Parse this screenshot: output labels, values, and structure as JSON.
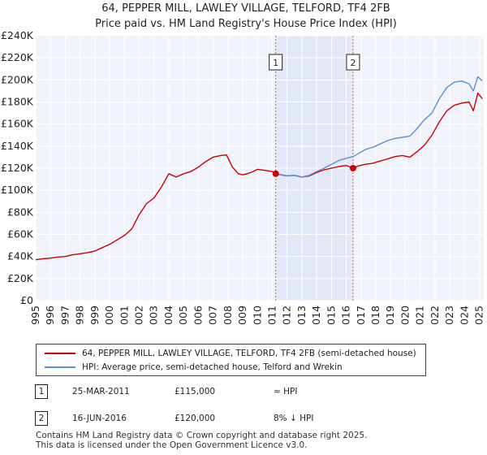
{
  "chart_data": {
    "type": "line",
    "title": "64, PEPPER MILL, LAWLEY VILLAGE, TELFORD, TF4 2FB",
    "subtitle": "Price paid vs. HM Land Registry's House Price Index (HPI)",
    "xlim": [
      1995,
      2025.3
    ],
    "ylim": [
      0,
      240000
    ],
    "x_ticks": [
      "1995",
      "1996",
      "1997",
      "1998",
      "1999",
      "2000",
      "2001",
      "2002",
      "2003",
      "2004",
      "2005",
      "2006",
      "2007",
      "2008",
      "2009",
      "2010",
      "2011",
      "2012",
      "2013",
      "2014",
      "2015",
      "2016",
      "2017",
      "2018",
      "2019",
      "2020",
      "2021",
      "2022",
      "2023",
      "2024",
      "2025"
    ],
    "y_ticks": [
      {
        "value": 0,
        "label": "£0"
      },
      {
        "value": 20000,
        "label": "£20K"
      },
      {
        "value": 40000,
        "label": "£40K"
      },
      {
        "value": 60000,
        "label": "£60K"
      },
      {
        "value": 80000,
        "label": "£80K"
      },
      {
        "value": 100000,
        "label": "£100K"
      },
      {
        "value": 120000,
        "label": "£120K"
      },
      {
        "value": 140000,
        "label": "£140K"
      },
      {
        "value": 160000,
        "label": "£160K"
      },
      {
        "value": 180000,
        "label": "£180K"
      },
      {
        "value": 200000,
        "label": "£200K"
      },
      {
        "value": 220000,
        "label": "£220K"
      },
      {
        "value": 240000,
        "label": "£240K"
      }
    ],
    "grid": true,
    "shaded_range": [
      2011.23,
      2016.46
    ],
    "series": [
      {
        "name": "64, PEPPER MILL, LAWLEY VILLAGE, TELFORD, TF4 2FB (semi-detached house)",
        "color": "#cc0000",
        "x": [
          1995,
          1995.5,
          1996,
          1996.5,
          1997,
          1997.5,
          1998,
          1998.5,
          1999,
          1999.5,
          2000,
          2000.5,
          2001,
          2001.5,
          2002,
          2002.5,
          2003,
          2003.5,
          2004,
          2004.5,
          2005,
          2005.5,
          2006,
          2006.5,
          2007,
          2007.5,
          2007.9,
          2008.3,
          2008.7,
          2009,
          2009.3,
          2009.7,
          2010,
          2010.5,
          2011,
          2011.23,
          2011.6,
          2012,
          2012.5,
          2013,
          2013.5,
          2014,
          2014.5,
          2015,
          2015.5,
          2016,
          2016.46,
          2016.8,
          2017.3,
          2017.8,
          2018.3,
          2018.8,
          2019.3,
          2019.8,
          2020.3,
          2020.8,
          2021.3,
          2021.8,
          2022.3,
          2022.8,
          2023.3,
          2023.8,
          2024.3,
          2024.6,
          2024.9,
          2025.2
        ],
        "values": [
          37000,
          38000,
          38500,
          39500,
          40000,
          41500,
          42500,
          43500,
          45000,
          48000,
          51000,
          55000,
          59000,
          65000,
          78000,
          88000,
          93000,
          103000,
          115000,
          112000,
          115000,
          117000,
          121000,
          126000,
          130000,
          131500,
          132000,
          121000,
          115000,
          114000,
          115000,
          117000,
          119000,
          118000,
          117000,
          115000,
          114000,
          113000,
          113500,
          112000,
          113000,
          116000,
          118500,
          120000,
          121500,
          122500,
          120000,
          122000,
          123500,
          124500,
          126500,
          128500,
          130500,
          131500,
          130000,
          135000,
          141000,
          150000,
          162000,
          172000,
          177000,
          179000,
          180000,
          172000,
          188000,
          183000
        ]
      },
      {
        "name": "HPI: Average price, semi-detached house, Telford and Wrekin",
        "color": "#5b8fd0",
        "x": [
          2011.23,
          2011.6,
          2012,
          2012.5,
          2013,
          2013.5,
          2014,
          2014.5,
          2015,
          2015.5,
          2016,
          2016.46,
          2016.8,
          2017.3,
          2017.8,
          2018.3,
          2018.8,
          2019.3,
          2019.8,
          2020.3,
          2020.8,
          2021.3,
          2021.8,
          2022.3,
          2022.8,
          2023.3,
          2023.8,
          2024.3,
          2024.6,
          2024.9,
          2025.2
        ],
        "values": [
          115000,
          114000,
          113000,
          113500,
          112000,
          113500,
          117000,
          120000,
          123500,
          127000,
          129000,
          130500,
          133000,
          137000,
          139000,
          142000,
          145000,
          147000,
          148000,
          149000,
          156000,
          164000,
          170000,
          183000,
          193000,
          198000,
          199000,
          196500,
          190000,
          203000,
          199000
        ]
      }
    ],
    "annotations": [
      {
        "label": "1",
        "x": 2011.23,
        "y": 115000
      },
      {
        "label": "2",
        "x": 2016.46,
        "y": 120000
      }
    ]
  },
  "legend": {
    "items": [
      {
        "label": "64, PEPPER MILL, LAWLEY VILLAGE, TELFORD, TF4 2FB (semi-detached house)",
        "color": "#cc0000"
      },
      {
        "label": "HPI: Average price, semi-detached house, Telford and Wrekin",
        "color": "#5b8fd0"
      }
    ]
  },
  "transactions": [
    {
      "id": "1",
      "date": "25-MAR-2011",
      "price": "£115,000",
      "relation": "≈ HPI"
    },
    {
      "id": "2",
      "date": "16-JUN-2016",
      "price": "£120,000",
      "relation": "8% ↓ HPI"
    }
  ],
  "footer": {
    "line1": "Contains HM Land Registry data © Crown copyright and database right 2025.",
    "line2": "This data is licensed under the Open Government Licence v3.0."
  }
}
